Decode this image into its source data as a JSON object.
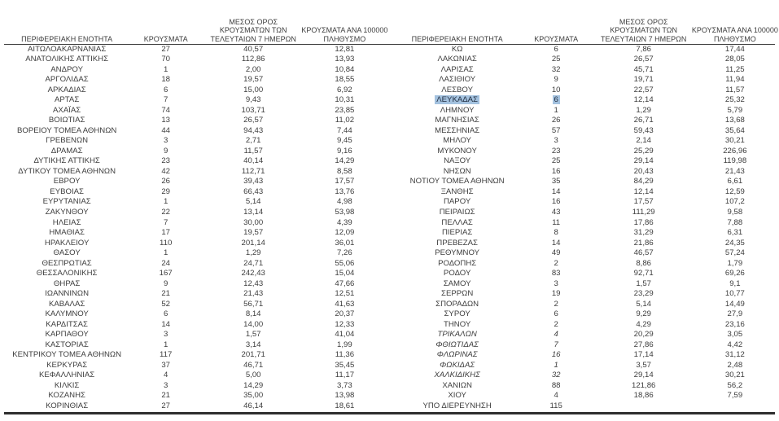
{
  "table": {
    "headers": {
      "region": "ΠΕΡΙΦΕΡΕΙΑΚΗ ΕΝΟΤΗΤΑ",
      "cases": "ΚΡΟΥΣΜΑΤΑ",
      "avg7": "ΜΕΣΟΣ ΟΡΟΣ\nΚΡΟΥΣΜΑΤΩΝ ΤΩΝ\nΤΕΛΕΥΤΑΙΩΝ 7 ΗΜΕΡΩΝ",
      "per100k": "ΚΡΟΥΣΜΑΤΑ ΑΝΑ 100000\nΠΛΗΘΥΣΜΟ"
    },
    "selection": {
      "region": "ΛΕΥΚΑΔΑΣ",
      "highlight_color": "#a4c2df"
    },
    "left_rows": [
      {
        "region": "ΑΙΤΩΛΟΑΚΑΡΝΑΝΙΑΣ",
        "cases": "27",
        "avg7": "40,57",
        "per100k": "12,81"
      },
      {
        "region": "ΑΝΑΤΟΛΙΚΗΣ ΑΤΤΙΚΗΣ",
        "cases": "70",
        "avg7": "112,86",
        "per100k": "13,93"
      },
      {
        "region": "ΑΝΔΡΟΥ",
        "cases": "1",
        "avg7": "2,00",
        "per100k": "10,84"
      },
      {
        "region": "ΑΡΓΟΛΙΔΑΣ",
        "cases": "18",
        "avg7": "19,57",
        "per100k": "18,55"
      },
      {
        "region": "ΑΡΚΑΔΙΑΣ",
        "cases": "6",
        "avg7": "15,00",
        "per100k": "6,92"
      },
      {
        "region": "ΑΡΤΑΣ",
        "cases": "7",
        "avg7": "9,43",
        "per100k": "10,31"
      },
      {
        "region": "ΑΧΑΪΑΣ",
        "cases": "74",
        "avg7": "103,71",
        "per100k": "23,85"
      },
      {
        "region": "ΒΟΙΩΤΙΑΣ",
        "cases": "13",
        "avg7": "26,57",
        "per100k": "11,02"
      },
      {
        "region": "ΒΟΡΕΙΟΥ ΤΟΜΕΑ ΑΘΗΝΩΝ",
        "cases": "44",
        "avg7": "94,43",
        "per100k": "7,44"
      },
      {
        "region": "ΓΡΕΒΕΝΩΝ",
        "cases": "3",
        "avg7": "2,71",
        "per100k": "9,45"
      },
      {
        "region": "ΔΡΑΜΑΣ",
        "cases": "9",
        "avg7": "11,57",
        "per100k": "9,16"
      },
      {
        "region": "ΔΥΤΙΚΗΣ ΑΤΤΙΚΗΣ",
        "cases": "23",
        "avg7": "40,14",
        "per100k": "14,29"
      },
      {
        "region": "ΔΥΤΙΚΟΥ ΤΟΜΕΑ ΑΘΗΝΩΝ",
        "cases": "42",
        "avg7": "112,71",
        "per100k": "8,58"
      },
      {
        "region": "ΕΒΡΟΥ",
        "cases": "26",
        "avg7": "39,43",
        "per100k": "17,57"
      },
      {
        "region": "ΕΥΒΟΙΑΣ",
        "cases": "29",
        "avg7": "66,43",
        "per100k": "13,76"
      },
      {
        "region": "ΕΥΡΥΤΑΝΙΑΣ",
        "cases": "1",
        "avg7": "5,14",
        "per100k": "4,98"
      },
      {
        "region": "ΖΑΚΥΝΘΟΥ",
        "cases": "22",
        "avg7": "13,14",
        "per100k": "53,98"
      },
      {
        "region": "ΗΛΕΙΑΣ",
        "cases": "7",
        "avg7": "30,00",
        "per100k": "4,39"
      },
      {
        "region": "ΗΜΑΘΙΑΣ",
        "cases": "17",
        "avg7": "19,57",
        "per100k": "12,09"
      },
      {
        "region": "ΗΡΑΚΛΕΙΟΥ",
        "cases": "110",
        "avg7": "201,14",
        "per100k": "36,01"
      },
      {
        "region": "ΘΑΣΟΥ",
        "cases": "1",
        "avg7": "1,29",
        "per100k": "7,26"
      },
      {
        "region": "ΘΕΣΠΡΩΤΙΑΣ",
        "cases": "24",
        "avg7": "24,71",
        "per100k": "55,06"
      },
      {
        "region": "ΘΕΣΣΑΛΟΝΙΚΗΣ",
        "cases": "167",
        "avg7": "242,43",
        "per100k": "15,04"
      },
      {
        "region": "ΘΗΡΑΣ",
        "cases": "9",
        "avg7": "12,43",
        "per100k": "47,66"
      },
      {
        "region": "ΙΩΑΝΝΙΝΩΝ",
        "cases": "21",
        "avg7": "21,43",
        "per100k": "12,51"
      },
      {
        "region": "ΚΑΒΑΛΑΣ",
        "cases": "52",
        "avg7": "56,71",
        "per100k": "41,63"
      },
      {
        "region": "ΚΑΛΥΜΝΟΥ",
        "cases": "6",
        "avg7": "8,14",
        "per100k": "20,37"
      },
      {
        "region": "ΚΑΡΔΙΤΣΑΣ",
        "cases": "14",
        "avg7": "14,00",
        "per100k": "12,33"
      },
      {
        "region": "ΚΑΡΠΑΘΟΥ",
        "cases": "3",
        "avg7": "1,57",
        "per100k": "41,04"
      },
      {
        "region": "ΚΑΣΤΟΡΙΑΣ",
        "cases": "1",
        "avg7": "3,14",
        "per100k": "1,99"
      },
      {
        "region": "ΚΕΝΤΡΙΚΟΥ ΤΟΜΕΑ ΑΘΗΝΩΝ",
        "cases": "117",
        "avg7": "201,71",
        "per100k": "11,36"
      },
      {
        "region": "ΚΕΡΚΥΡΑΣ",
        "cases": "37",
        "avg7": "46,71",
        "per100k": "35,45"
      },
      {
        "region": "ΚΕΦΑΛΛΗΝΙΑΣ",
        "cases": "4",
        "avg7": "5,00",
        "per100k": "11,17"
      },
      {
        "region": "ΚΙΛΚΙΣ",
        "cases": "3",
        "avg7": "14,29",
        "per100k": "3,73"
      },
      {
        "region": "ΚΟΖΑΝΗΣ",
        "cases": "21",
        "avg7": "35,00",
        "per100k": "13,98"
      },
      {
        "region": "ΚΟΡΙΝΘΙΑΣ",
        "cases": "27",
        "avg7": "46,14",
        "per100k": "18,61"
      }
    ],
    "right_rows": [
      {
        "region": "ΚΩ",
        "cases": "6",
        "avg7": "7,86",
        "per100k": "17,44"
      },
      {
        "region": "ΛΑΚΩΝΙΑΣ",
        "cases": "25",
        "avg7": "26,57",
        "per100k": "28,05"
      },
      {
        "region": "ΛΑΡΙΣΑΣ",
        "cases": "32",
        "avg7": "45,71",
        "per100k": "11,25"
      },
      {
        "region": "ΛΑΣΙΘΙΟΥ",
        "cases": "9",
        "avg7": "19,71",
        "per100k": "11,94"
      },
      {
        "region": "ΛΕΣΒΟΥ",
        "cases": "10",
        "avg7": "22,57",
        "per100k": "11,57"
      },
      {
        "region": "ΛΕΥΚΑΔΑΣ",
        "cases": "6",
        "avg7": "12,14",
        "per100k": "25,32",
        "highlighted": true
      },
      {
        "region": "ΛΗΜΝΟΥ",
        "cases": "1",
        "avg7": "1,29",
        "per100k": "5,79"
      },
      {
        "region": "ΜΑΓΝΗΣΙΑΣ",
        "cases": "26",
        "avg7": "26,71",
        "per100k": "13,68"
      },
      {
        "region": "ΜΕΣΣΗΝΙΑΣ",
        "cases": "57",
        "avg7": "59,43",
        "per100k": "35,64"
      },
      {
        "region": "ΜΗΛΟΥ",
        "cases": "3",
        "avg7": "2,14",
        "per100k": "30,21"
      },
      {
        "region": "ΜΥΚΟΝΟΥ",
        "cases": "23",
        "avg7": "25,29",
        "per100k": "226,96"
      },
      {
        "region": "ΝΑΞΟΥ",
        "cases": "25",
        "avg7": "29,14",
        "per100k": "119,98"
      },
      {
        "region": "ΝΗΣΩΝ",
        "cases": "16",
        "avg7": "20,43",
        "per100k": "21,43"
      },
      {
        "region": "ΝΟΤΙΟΥ ΤΟΜΕΑ ΑΘΗΝΩΝ",
        "cases": "35",
        "avg7": "84,29",
        "per100k": "6,61"
      },
      {
        "region": "ΞΑΝΘΗΣ",
        "cases": "14",
        "avg7": "12,14",
        "per100k": "12,59"
      },
      {
        "region": "ΠΑΡΟΥ",
        "cases": "16",
        "avg7": "17,57",
        "per100k": "107,2"
      },
      {
        "region": "ΠΕΙΡΑΙΩΣ",
        "cases": "43",
        "avg7": "111,29",
        "per100k": "9,58"
      },
      {
        "region": "ΠΕΛΛΑΣ",
        "cases": "11",
        "avg7": "17,86",
        "per100k": "7,88"
      },
      {
        "region": "ΠΙΕΡΙΑΣ",
        "cases": "8",
        "avg7": "31,29",
        "per100k": "6,31"
      },
      {
        "region": "ΠΡΕΒΕΖΑΣ",
        "cases": "14",
        "avg7": "21,86",
        "per100k": "24,35"
      },
      {
        "region": "ΡΕΘΥΜΝΟΥ",
        "cases": "49",
        "avg7": "46,57",
        "per100k": "57,24"
      },
      {
        "region": "ΡΟΔΟΠΗΣ",
        "cases": "2",
        "avg7": "8,86",
        "per100k": "1,79"
      },
      {
        "region": "ΡΟΔΟΥ",
        "cases": "83",
        "avg7": "92,71",
        "per100k": "69,26"
      },
      {
        "region": "ΣΑΜΟΥ",
        "cases": "3",
        "avg7": "1,57",
        "per100k": "9,1"
      },
      {
        "region": "ΣΕΡΡΩΝ",
        "cases": "19",
        "avg7": "23,29",
        "per100k": "10,77"
      },
      {
        "region": "ΣΠΟΡΑΔΩΝ",
        "cases": "2",
        "avg7": "5,14",
        "per100k": "14,49"
      },
      {
        "region": "ΣΥΡΟΥ",
        "cases": "6",
        "avg7": "9,29",
        "per100k": "27,9"
      },
      {
        "region": "ΤΗΝΟΥ",
        "cases": "2",
        "avg7": "4,29",
        "per100k": "23,16"
      },
      {
        "region": "ΤΡΙΚΑΛΩΝ",
        "cases": "4",
        "avg7": "20,29",
        "per100k": "3,05",
        "italic": true
      },
      {
        "region": "ΦΘΙΩΤΙΔΑΣ",
        "cases": "7",
        "avg7": "27,86",
        "per100k": "4,42",
        "italic": true
      },
      {
        "region": "ΦΛΩΡΙΝΑΣ",
        "cases": "16",
        "avg7": "17,14",
        "per100k": "31,12",
        "italic": true
      },
      {
        "region": "ΦΩΚΙΔΑΣ",
        "cases": "1",
        "avg7": "3,57",
        "per100k": "2,48",
        "italic": true
      },
      {
        "region": "ΧΑΛΚΙΔΙΚΗΣ",
        "cases": "32",
        "avg7": "29,14",
        "per100k": "30,21",
        "italic": true
      },
      {
        "region": "ΧΑΝΙΩΝ",
        "cases": "88",
        "avg7": "121,86",
        "per100k": "56,2"
      },
      {
        "region": "ΧΙΟΥ",
        "cases": "4",
        "avg7": "18,86",
        "per100k": "7,59"
      },
      {
        "region": "ΥΠΟ ΔΙΕΡΕΥΝΗΣΗ",
        "cases": "115",
        "avg7": "",
        "per100k": ""
      }
    ]
  }
}
